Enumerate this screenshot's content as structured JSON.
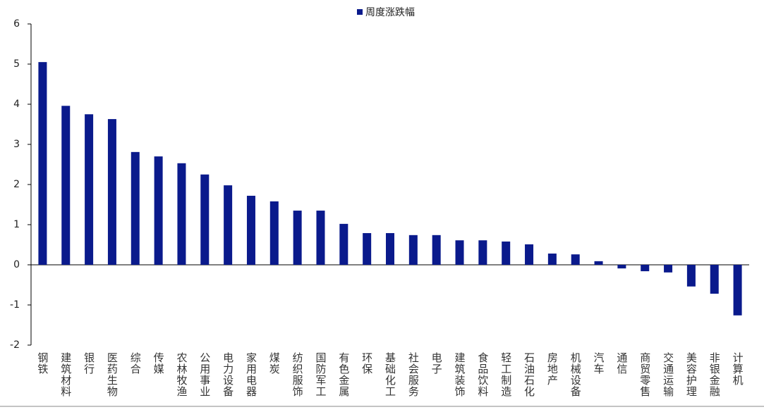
{
  "chart_data": {
    "type": "bar",
    "legend": "周度涨跌幅",
    "legend_position": "top",
    "color": "#0a1a8c",
    "categories": [
      "钢铁",
      "建筑材料",
      "银行",
      "医药生物",
      "综合",
      "传媒",
      "农林牧渔",
      "公用事业",
      "电力设备",
      "家用电器",
      "煤炭",
      "纺织服饰",
      "国防军工",
      "有色金属",
      "环保",
      "基础化工",
      "社会服务",
      "电子",
      "建筑装饰",
      "食品饮料",
      "轻工制造",
      "石油石化",
      "房地产",
      "机械设备",
      "汽车",
      "通信",
      "商贸零售",
      "交通运输",
      "美容护理",
      "非银金融",
      "计算机"
    ],
    "values": [
      5.05,
      3.96,
      3.75,
      3.63,
      2.81,
      2.7,
      2.53,
      2.25,
      1.98,
      1.72,
      1.58,
      1.35,
      1.35,
      1.02,
      0.79,
      0.79,
      0.74,
      0.74,
      0.61,
      0.61,
      0.58,
      0.51,
      0.28,
      0.26,
      0.09,
      -0.09,
      -0.16,
      -0.19,
      -0.54,
      -0.72,
      -1.26
    ],
    "ylim": [
      -2,
      6
    ],
    "yticks": [
      -2,
      -1,
      0,
      1,
      2,
      3,
      4,
      5,
      6
    ],
    "grid": false
  }
}
